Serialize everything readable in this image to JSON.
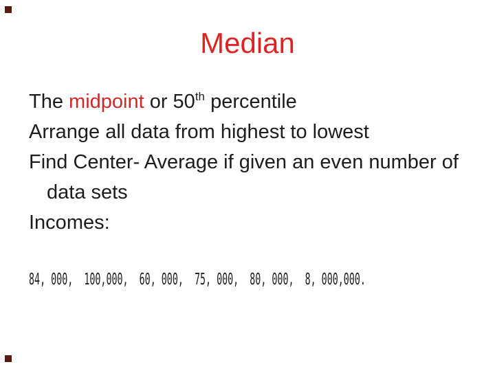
{
  "slide": {
    "title": "Median",
    "body": {
      "line1_pre": "The ",
      "line1_highlight": "midpoint",
      "line1_mid": " or 50",
      "line1_sup": "th",
      "line1_post": " percentile",
      "line2": "Arrange all data from highest to lowest",
      "line3": "Find Center- Average if given an even number of",
      "line3_cont": "data sets",
      "line4": "Incomes:"
    },
    "incomes": "84, 000,  100,000,  60, 000,  75, 000,  80, 000,  8, 000,000."
  },
  "colors": {
    "title-red": "#dc2423",
    "highlight-red": "#cb2b28",
    "text-black": "#1c1c1c",
    "decor-maroon": "#5a1b12",
    "background": "#ffffff"
  }
}
